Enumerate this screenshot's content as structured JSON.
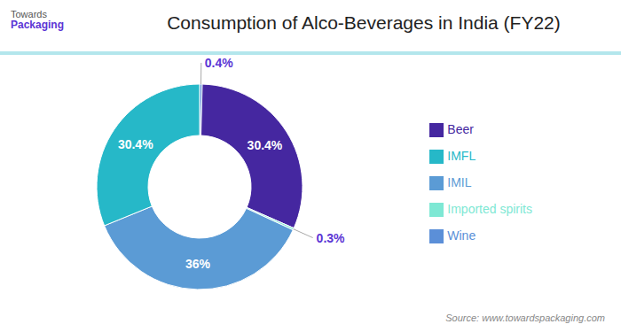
{
  "chart_data": {
    "type": "pie",
    "title": "Consumption of Alco-Beverages in India (FY22)",
    "categories": [
      "Wine",
      "Beer",
      "Imported spirits",
      "IMIL",
      "IMFL"
    ],
    "values": [
      0.4,
      30.4,
      0.3,
      36.0,
      30.4
    ],
    "colors": [
      "#5b8fd8",
      "#4527a0",
      "#7ee8d4",
      "#5b9bd5",
      "#26b8c8"
    ],
    "data_labels": true,
    "value_labels": [
      "0.4%",
      "30.4%",
      "0.3%",
      "36%",
      "30.4%"
    ],
    "legend": "right",
    "annotations": [
      "Towards",
      "Packaging",
      "Source: www.towardspackaging.com"
    ]
  }
}
